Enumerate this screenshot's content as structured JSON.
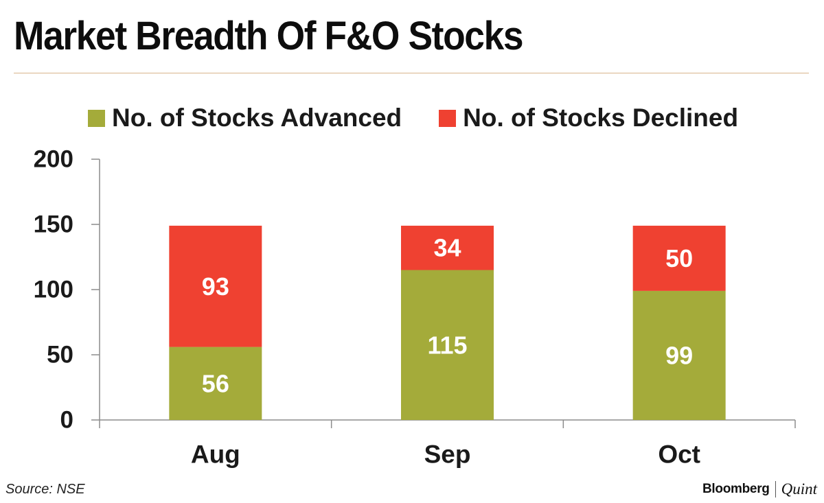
{
  "title": "Market Breadth Of F&O Stocks",
  "source": "Source: NSE",
  "brand": {
    "left": "Bloomberg",
    "right": "Quint"
  },
  "colors": {
    "advanced": "#a4ab3a",
    "declined": "#ef4131",
    "axis": "#8c8c8c",
    "rule": "#d9b48a"
  },
  "chart_data": {
    "type": "bar",
    "stacked": true,
    "categories": [
      "Aug",
      "Sep",
      "Oct"
    ],
    "series": [
      {
        "name": "No. of Stocks Advanced",
        "values": [
          56,
          115,
          99
        ]
      },
      {
        "name": "No. of Stocks Declined",
        "values": [
          93,
          34,
          50
        ]
      }
    ],
    "ylim": [
      0,
      200
    ],
    "yticks": [
      0,
      50,
      100,
      150,
      200
    ],
    "grid": false,
    "legend": "top",
    "data_labels": true
  }
}
